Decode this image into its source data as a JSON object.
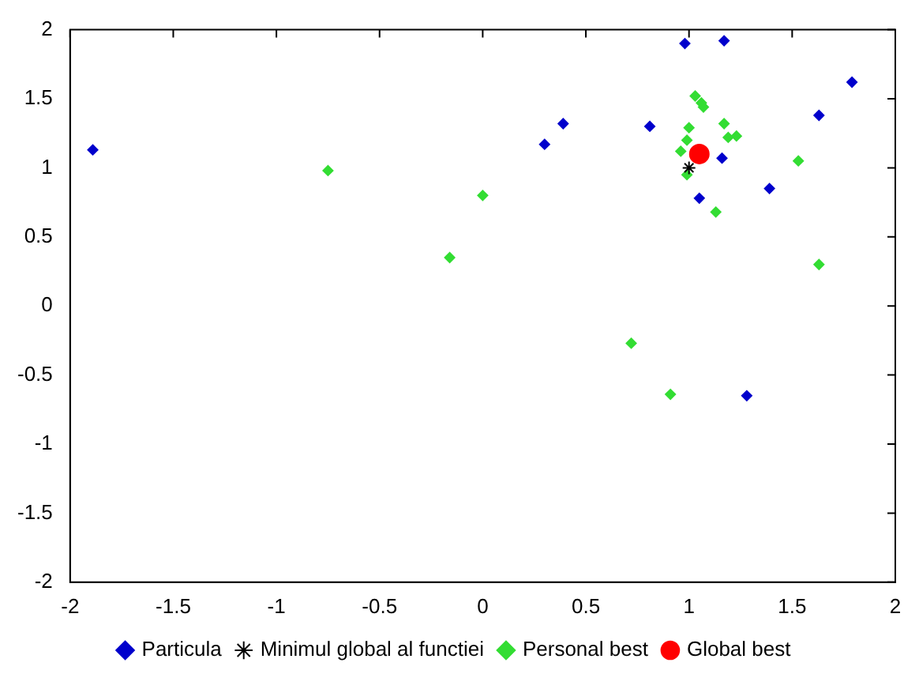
{
  "chart_data": {
    "type": "scatter",
    "xlim": [
      -2,
      2
    ],
    "ylim": [
      -2,
      2
    ],
    "xticks": [
      -2,
      -1.5,
      -1,
      -0.5,
      0,
      0.5,
      1,
      1.5,
      2
    ],
    "yticks": [
      -2,
      -1.5,
      -1,
      -0.5,
      0,
      0.5,
      1,
      1.5,
      2
    ],
    "grid": false,
    "legend": "bottom",
    "series": [
      {
        "name": "Particula",
        "color": "#0000cc",
        "marker": "diamond",
        "x": [
          -1.89,
          0.98,
          1.17,
          1.79,
          1.63,
          0.39,
          0.3,
          0.81,
          1.16,
          1.05,
          1.39,
          1.28
        ],
        "values": [
          1.13,
          1.9,
          1.92,
          1.62,
          1.38,
          1.32,
          1.17,
          1.3,
          1.07,
          0.78,
          0.85,
          -0.65
        ]
      },
      {
        "name": "Minimul global al functiei",
        "color": "#000000",
        "marker": "cross",
        "x": [
          1
        ],
        "values": [
          1
        ]
      },
      {
        "name": "Personal best",
        "color": "#33dd33",
        "marker": "diamond",
        "x": [
          -0.75,
          -0.16,
          0,
          1.03,
          1.06,
          1.07,
          1,
          1.17,
          1.19,
          1.23,
          0.99,
          0.96,
          0.99,
          1.13,
          1.53,
          1.63,
          0.72,
          0.91
        ],
        "values": [
          0.98,
          0.35,
          0.8,
          1.52,
          1.47,
          1.44,
          1.29,
          1.32,
          1.22,
          1.23,
          1.2,
          1.12,
          0.95,
          0.68,
          1.05,
          0.3,
          -0.27,
          -0.64
        ]
      },
      {
        "name": "Global best",
        "color": "#ff0000",
        "marker": "circle",
        "x": [
          1.05
        ],
        "values": [
          1.1
        ]
      }
    ]
  }
}
